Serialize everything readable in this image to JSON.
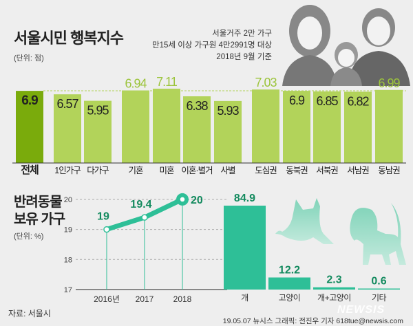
{
  "header": {
    "title": "서울시민 행복지수",
    "unit": "(단위: 점)",
    "notes": [
      "서울거주 2만 가구",
      "만15세 이상 가구원 4만2991명 대상",
      "2018년 9월 기준"
    ]
  },
  "colors": {
    "total": "#7aab0c",
    "bar": "#b2d35a",
    "highlight_text": "#9cc43c",
    "pet": "#2ebf97",
    "pet_text": "#138a5e"
  },
  "chart_data": [
    {
      "type": "bar",
      "title": "서울시민 행복지수",
      "ylabel": "점",
      "categories": [
        "전체",
        "1인가구",
        "다가구",
        "기혼",
        "미혼",
        "이혼·별거",
        "사별",
        "도심권",
        "동북권",
        "서북권",
        "서남권",
        "동남권"
      ],
      "values": [
        6.9,
        6.57,
        5.95,
        6.94,
        7.11,
        6.38,
        5.93,
        7.03,
        6.9,
        6.85,
        6.82,
        6.99
      ],
      "value_labels": [
        "6.9",
        "6.57",
        "5.95",
        "6.94",
        "7.11",
        "6.38",
        "5.93",
        "7.03",
        "6.9",
        "6.85",
        "6.82",
        "6.99"
      ]
    },
    {
      "type": "line",
      "title": "반려동물 보유 가구",
      "ylabel": "%",
      "x": [
        "2016년",
        "2017",
        "2018"
      ],
      "values": [
        19,
        19.4,
        20
      ],
      "value_labels": [
        "19",
        "19.4",
        "20"
      ],
      "ylim": [
        17,
        20
      ],
      "yticks": [
        "17",
        "18",
        "19",
        "20"
      ],
      "grid": true
    },
    {
      "type": "bar",
      "categories": [
        "개",
        "고양이",
        "개+고양이",
        "기타"
      ],
      "values": [
        84.9,
        12.2,
        2.3,
        0.6
      ],
      "value_labels": [
        "84.9",
        "12.2",
        "2.3",
        "0.6"
      ]
    }
  ],
  "pet": {
    "title_line1": "반려동물",
    "title_line2": "보유 가구",
    "unit": "(단위: %)"
  },
  "footer": {
    "source": "자료: 서울시",
    "credit": "19.05.07 뉴시스 그래픽: 전진우 기자 618tue@newsis.com",
    "watermark": "NEWSIS"
  }
}
